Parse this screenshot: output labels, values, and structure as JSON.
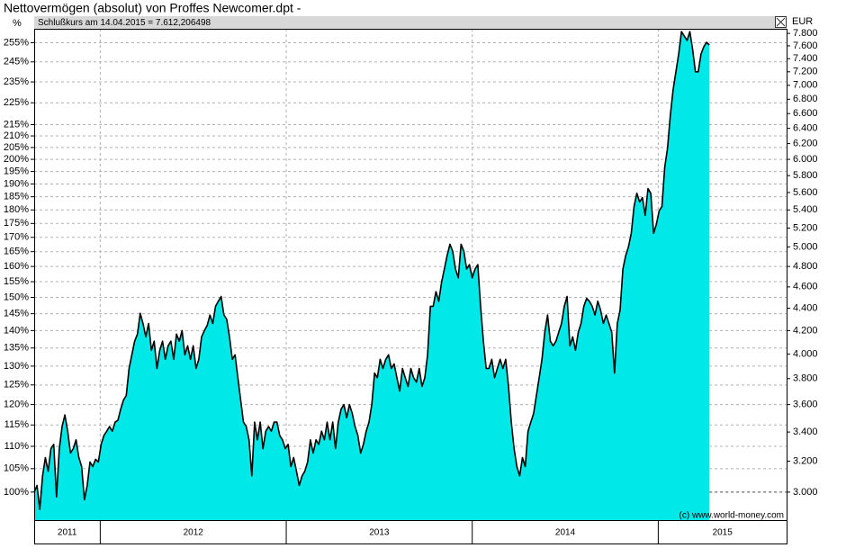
{
  "chart_data": {
    "type": "area",
    "title": "Nettovermögen (absolut) von Proffes Newcomer.dpt -",
    "header": "Schlußkurs am 14.04.2015 = 7.612,206498",
    "y_label": "EUR",
    "y2_label": "%",
    "credit": "(c) www.world-money.com",
    "color": "#00e8e8",
    "line_color": "#000000",
    "log_scale": true,
    "grid": true,
    "reference_value": 3000,
    "xlim": [
      2011.645,
      2015.69
    ],
    "xticks": [
      2012,
      2013,
      2014,
      2015
    ],
    "year_labels": [
      "2011",
      "2012",
      "2013",
      "2014",
      "2015"
    ],
    "ylim": [
      2830,
      7875
    ],
    "yticks": [
      {
        "value": 3000,
        "label": "3.000"
      },
      {
        "value": 3200,
        "label": "3.200"
      },
      {
        "value": 3400,
        "label": "3.400"
      },
      {
        "value": 3600,
        "label": "3.600"
      },
      {
        "value": 3800,
        "label": "3.800"
      },
      {
        "value": 4000,
        "label": "4.000"
      },
      {
        "value": 4200,
        "label": "4.200"
      },
      {
        "value": 4400,
        "label": "4.400"
      },
      {
        "value": 4600,
        "label": "4.600"
      },
      {
        "value": 4800,
        "label": "4.800"
      },
      {
        "value": 5000,
        "label": "5.000"
      },
      {
        "value": 5200,
        "label": "5.200"
      },
      {
        "value": 5400,
        "label": "5.400"
      },
      {
        "value": 5600,
        "label": "5.600"
      },
      {
        "value": 5800,
        "label": "5.800"
      },
      {
        "value": 6000,
        "label": "6.000"
      },
      {
        "value": 6200,
        "label": "6.200"
      },
      {
        "value": 6400,
        "label": "6.400"
      },
      {
        "value": 6600,
        "label": "6.600"
      },
      {
        "value": 6800,
        "label": "6.800"
      },
      {
        "value": 7000,
        "label": "7.000"
      },
      {
        "value": 7200,
        "label": "7.200"
      },
      {
        "value": 7400,
        "label": "7.400"
      },
      {
        "value": 7600,
        "label": "7.600"
      },
      {
        "value": 7800,
        "label": "7.800"
      }
    ],
    "y2lim": [
      94.33,
      262.5
    ],
    "y2ticks": [
      {
        "value": 100,
        "label": "100%"
      },
      {
        "value": 105,
        "label": "105%"
      },
      {
        "value": 110,
        "label": "110%"
      },
      {
        "value": 115,
        "label": "115%"
      },
      {
        "value": 120,
        "label": "120%"
      },
      {
        "value": 125,
        "label": "125%"
      },
      {
        "value": 130,
        "label": "130%"
      },
      {
        "value": 135,
        "label": "135%"
      },
      {
        "value": 140,
        "label": "140%"
      },
      {
        "value": 145,
        "label": "145%"
      },
      {
        "value": 150,
        "label": "150%"
      },
      {
        "value": 155,
        "label": "155%"
      },
      {
        "value": 160,
        "label": "160%"
      },
      {
        "value": 165,
        "label": "165%"
      },
      {
        "value": 170,
        "label": "170%"
      },
      {
        "value": 175,
        "label": "175%"
      },
      {
        "value": 180,
        "label": "180%"
      },
      {
        "value": 185,
        "label": "185%"
      },
      {
        "value": 190,
        "label": "190%"
      },
      {
        "value": 195,
        "label": "195%"
      },
      {
        "value": 200,
        "label": "200%"
      },
      {
        "value": 205,
        "label": "205%"
      },
      {
        "value": 210,
        "label": "210%"
      },
      {
        "value": 215,
        "label": "215%"
      },
      {
        "value": 225,
        "label": "225%"
      },
      {
        "value": 235,
        "label": "235%"
      },
      {
        "value": 245,
        "label": "245%"
      },
      {
        "value": 255,
        "label": "255%"
      }
    ],
    "x": [
      2011.645,
      2011.66,
      2011.675,
      2011.69,
      2011.705,
      2011.72,
      2011.735,
      2011.75,
      2011.765,
      2011.78,
      2011.795,
      2011.81,
      2011.825,
      2011.84,
      2011.855,
      2011.87,
      2011.885,
      2011.9,
      2011.915,
      2011.93,
      2011.945,
      2011.96,
      2011.975,
      2011.99,
      2012.005,
      2012.02,
      2012.035,
      2012.05,
      2012.065,
      2012.08,
      2012.095,
      2012.11,
      2012.125,
      2012.14,
      2012.155,
      2012.17,
      2012.185,
      2012.2,
      2012.215,
      2012.23,
      2012.245,
      2012.26,
      2012.275,
      2012.29,
      2012.305,
      2012.32,
      2012.335,
      2012.35,
      2012.365,
      2012.38,
      2012.395,
      2012.41,
      2012.425,
      2012.44,
      2012.455,
      2012.47,
      2012.485,
      2012.5,
      2012.515,
      2012.53,
      2012.545,
      2012.56,
      2012.575,
      2012.59,
      2012.605,
      2012.62,
      2012.635,
      2012.65,
      2012.665,
      2012.68,
      2012.695,
      2012.71,
      2012.725,
      2012.74,
      2012.755,
      2012.77,
      2012.785,
      2012.8,
      2012.815,
      2012.83,
      2012.845,
      2012.86,
      2012.875,
      2012.89,
      2012.905,
      2012.92,
      2012.935,
      2012.95,
      2012.965,
      2012.98,
      2012.995,
      2013.01,
      2013.025,
      2013.04,
      2013.055,
      2013.07,
      2013.085,
      2013.1,
      2013.115,
      2013.13,
      2013.145,
      2013.16,
      2013.175,
      2013.19,
      2013.205,
      2013.22,
      2013.235,
      2013.25,
      2013.265,
      2013.28,
      2013.295,
      2013.31,
      2013.325,
      2013.34,
      2013.355,
      2013.37,
      2013.385,
      2013.4,
      2013.415,
      2013.43,
      2013.445,
      2013.46,
      2013.475,
      2013.49,
      2013.505,
      2013.52,
      2013.535,
      2013.55,
      2013.565,
      2013.58,
      2013.595,
      2013.61,
      2013.625,
      2013.64,
      2013.655,
      2013.67,
      2013.685,
      2013.7,
      2013.715,
      2013.73,
      2013.745,
      2013.76,
      2013.775,
      2013.79,
      2013.805,
      2013.82,
      2013.835,
      2013.85,
      2013.865,
      2013.88,
      2013.895,
      2013.91,
      2013.925,
      2013.94,
      2013.955,
      2013.97,
      2013.985,
      2014.0,
      2014.015,
      2014.03,
      2014.045,
      2014.06,
      2014.075,
      2014.09,
      2014.105,
      2014.12,
      2014.135,
      2014.15,
      2014.165,
      2014.18,
      2014.195,
      2014.21,
      2014.225,
      2014.24,
      2014.255,
      2014.27,
      2014.285,
      2014.3,
      2014.315,
      2014.33,
      2014.345,
      2014.36,
      2014.375,
      2014.39,
      2014.405,
      2014.42,
      2014.435,
      2014.45,
      2014.465,
      2014.48,
      2014.495,
      2014.51,
      2014.525,
      2014.54,
      2014.555,
      2014.57,
      2014.585,
      2014.6,
      2014.615,
      2014.63,
      2014.645,
      2014.66,
      2014.675,
      2014.69,
      2014.705,
      2014.72,
      2014.735,
      2014.75,
      2014.765,
      2014.78,
      2014.795,
      2014.81,
      2014.825,
      2014.84,
      2014.855,
      2014.87,
      2014.885,
      2014.9,
      2014.915,
      2014.93,
      2014.945,
      2014.96,
      2014.975,
      2014.99,
      2015.005,
      2015.02,
      2015.035,
      2015.05,
      2015.065,
      2015.08,
      2015.095,
      2015.11,
      2015.125,
      2015.14,
      2015.155,
      2015.17,
      2015.185,
      2015.2,
      2015.215,
      2015.23,
      2015.245,
      2015.26,
      2015.275
    ],
    "values": [
      3000,
      3042,
      2894,
      3103,
      3224,
      3133,
      3284,
      3314,
      2970,
      3284,
      3439,
      3523,
      3406,
      3254,
      3284,
      3345,
      3224,
      3164,
      2953,
      3042,
      3194,
      3164,
      3212,
      3194,
      3314,
      3376,
      3406,
      3439,
      3406,
      3471,
      3484,
      3566,
      3634,
      3669,
      3881,
      3993,
      4108,
      4169,
      4354,
      4262,
      4146,
      4262,
      4031,
      4108,
      3881,
      4031,
      4108,
      3956,
      4069,
      4108,
      3956,
      4169,
      4108,
      4200,
      3993,
      4069,
      3956,
      4069,
      3881,
      3956,
      4146,
      4200,
      4246,
      4338,
      4262,
      4418,
      4464,
      4509,
      4338,
      4300,
      4146,
      3956,
      3993,
      3807,
      3634,
      3471,
      3439,
      3345,
      3103,
      3471,
      3345,
      3471,
      3284,
      3406,
      3439,
      3406,
      3471,
      3471,
      3376,
      3345,
      3284,
      3314,
      3164,
      3224,
      3133,
      3042,
      3103,
      3133,
      3194,
      3345,
      3254,
      3345,
      3314,
      3406,
      3345,
      3471,
      3345,
      3471,
      3284,
      3471,
      3566,
      3600,
      3503,
      3600,
      3534,
      3439,
      3376,
      3254,
      3314,
      3406,
      3471,
      3600,
      3844,
      3807,
      3956,
      3881,
      3956,
      3993,
      3881,
      3918,
      3807,
      3703,
      3881,
      3807,
      3738,
      3881,
      3807,
      3772,
      3881,
      3738,
      3807,
      3993,
      4418,
      4418,
      4555,
      4464,
      4643,
      4774,
      4909,
      5028,
      4955,
      4774,
      4687,
      5028,
      4955,
      4774,
      4818,
      4687,
      4774,
      4818,
      4418,
      4108,
      3881,
      3881,
      3956,
      3807,
      3881,
      3956,
      3881,
      3956,
      3738,
      3471,
      3284,
      3164,
      3103,
      3224,
      3164,
      3406,
      3471,
      3534,
      3669,
      3807,
      3956,
      4185,
      4338,
      4108,
      4069,
      4108,
      4185,
      4262,
      4418,
      4509,
      4069,
      4146,
      4031,
      4185,
      4262,
      4418,
      4491,
      4464,
      4418,
      4338,
      4464,
      4384,
      4262,
      4338,
      4262,
      4185,
      3844,
      4262,
      4384,
      4774,
      4909,
      5000,
      5143,
      5440,
      5590,
      5490,
      5540,
      5340,
      5645,
      5590,
      5143,
      5240,
      5390,
      5440,
      5905,
      6141,
      6576,
      6935,
      7200,
      7471,
      7829,
      7757,
      7686,
      7829,
      7543,
      7200,
      7200,
      7471,
      7586,
      7657,
      7612
    ]
  }
}
